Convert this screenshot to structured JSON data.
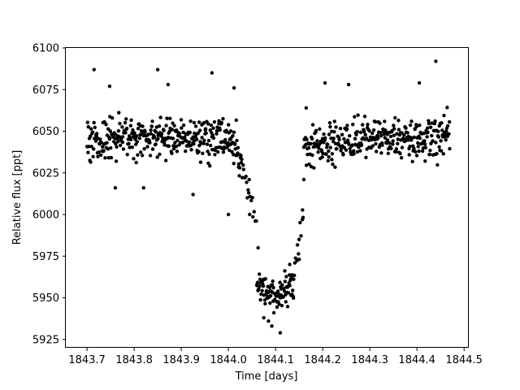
{
  "chart_data": {
    "type": "scatter",
    "title": "",
    "xlabel": "Time [days]",
    "ylabel": "Relative flux [ppt]",
    "xlim": [
      1843.655,
      1844.51
    ],
    "ylim": [
      5920,
      6100
    ],
    "xticks": [
      1843.7,
      1843.8,
      1843.9,
      1844.0,
      1844.1,
      1844.2,
      1844.3,
      1844.4,
      1844.5
    ],
    "xtick_labels": [
      "1843.7",
      "1843.8",
      "1843.9",
      "1844.0",
      "1844.1",
      "1844.2",
      "1844.3",
      "1844.4",
      "1844.5"
    ],
    "yticks": [
      5925,
      5950,
      5975,
      6000,
      6025,
      6050,
      6075,
      6100
    ],
    "ytick_labels": [
      "5925",
      "5950",
      "5975",
      "6000",
      "6025",
      "6050",
      "6075",
      "6100"
    ],
    "grid": false,
    "legend": "none",
    "marker_color": "#000000",
    "series": [
      {
        "segments": [
          {
            "x_range": [
              1843.7,
              1843.79
            ],
            "trend": [
              [
                1843.7,
                6044
              ],
              [
                1843.79,
                6046
              ]
            ],
            "scatter": 11,
            "n": 95
          },
          {
            "x_range": [
              1843.79,
              1843.98
            ],
            "trend": [
              [
                1843.79,
                6046
              ],
              [
                1843.98,
                6046
              ]
            ],
            "scatter": 11,
            "n": 200
          },
          {
            "x_range": [
              1843.98,
              1844.03
            ],
            "trend": [
              [
                1843.98,
                6046
              ],
              [
                1844.0,
                6045
              ],
              [
                1844.03,
                6032
              ]
            ],
            "scatter": 11,
            "n": 55
          },
          {
            "x_range": [
              1844.03,
              1844.06
            ],
            "trend": [
              [
                1844.03,
                6030
              ],
              [
                1844.045,
                6010
              ],
              [
                1844.06,
                5990
              ]
            ],
            "scatter": 7,
            "n": 14
          },
          {
            "x_range": [
              1844.06,
              1844.14
            ],
            "trend": [
              [
                1844.06,
                5957
              ],
              [
                1844.1,
                5951
              ],
              [
                1844.14,
                5958
              ]
            ],
            "scatter": 9,
            "n": 95
          },
          {
            "x_range": [
              1844.14,
              1844.16
            ],
            "trend": [
              [
                1844.14,
                5965
              ],
              [
                1844.15,
                5982
              ],
              [
                1844.16,
                6000
              ]
            ],
            "scatter": 8,
            "n": 10
          },
          {
            "x_range": [
              1844.16,
              1844.47
            ],
            "trend": [
              [
                1844.16,
                6040
              ],
              [
                1844.3,
                6046
              ],
              [
                1844.47,
                6046
              ]
            ],
            "scatter": 11,
            "n": 330
          }
        ],
        "extra_points": [
          [
            1843.715,
            6087
          ],
          [
            1843.748,
            6077
          ],
          [
            1843.85,
            6087
          ],
          [
            1843.872,
            6078
          ],
          [
            1843.965,
            6085
          ],
          [
            1844.012,
            6076
          ],
          [
            1844.44,
            6092
          ],
          [
            1844.405,
            6079
          ],
          [
            1844.205,
            6079
          ],
          [
            1844.255,
            6078
          ],
          [
            1843.76,
            6016
          ],
          [
            1843.82,
            6016
          ],
          [
            1843.925,
            6012
          ],
          [
            1844.0,
            6000
          ],
          [
            1844.043,
            6013
          ],
          [
            1844.04,
            6010
          ],
          [
            1844.045,
            6000
          ],
          [
            1844.11,
            5929
          ],
          [
            1844.092,
            5933
          ],
          [
            1844.075,
            5938
          ],
          [
            1844.085,
            5936
          ],
          [
            1844.063,
            5980
          ],
          [
            1844.13,
            5970
          ],
          [
            1844.15,
            5985
          ],
          [
            1844.157,
            5997
          ],
          [
            1844.16,
            6021
          ],
          [
            1844.165,
            6064
          ]
        ]
      }
    ]
  }
}
